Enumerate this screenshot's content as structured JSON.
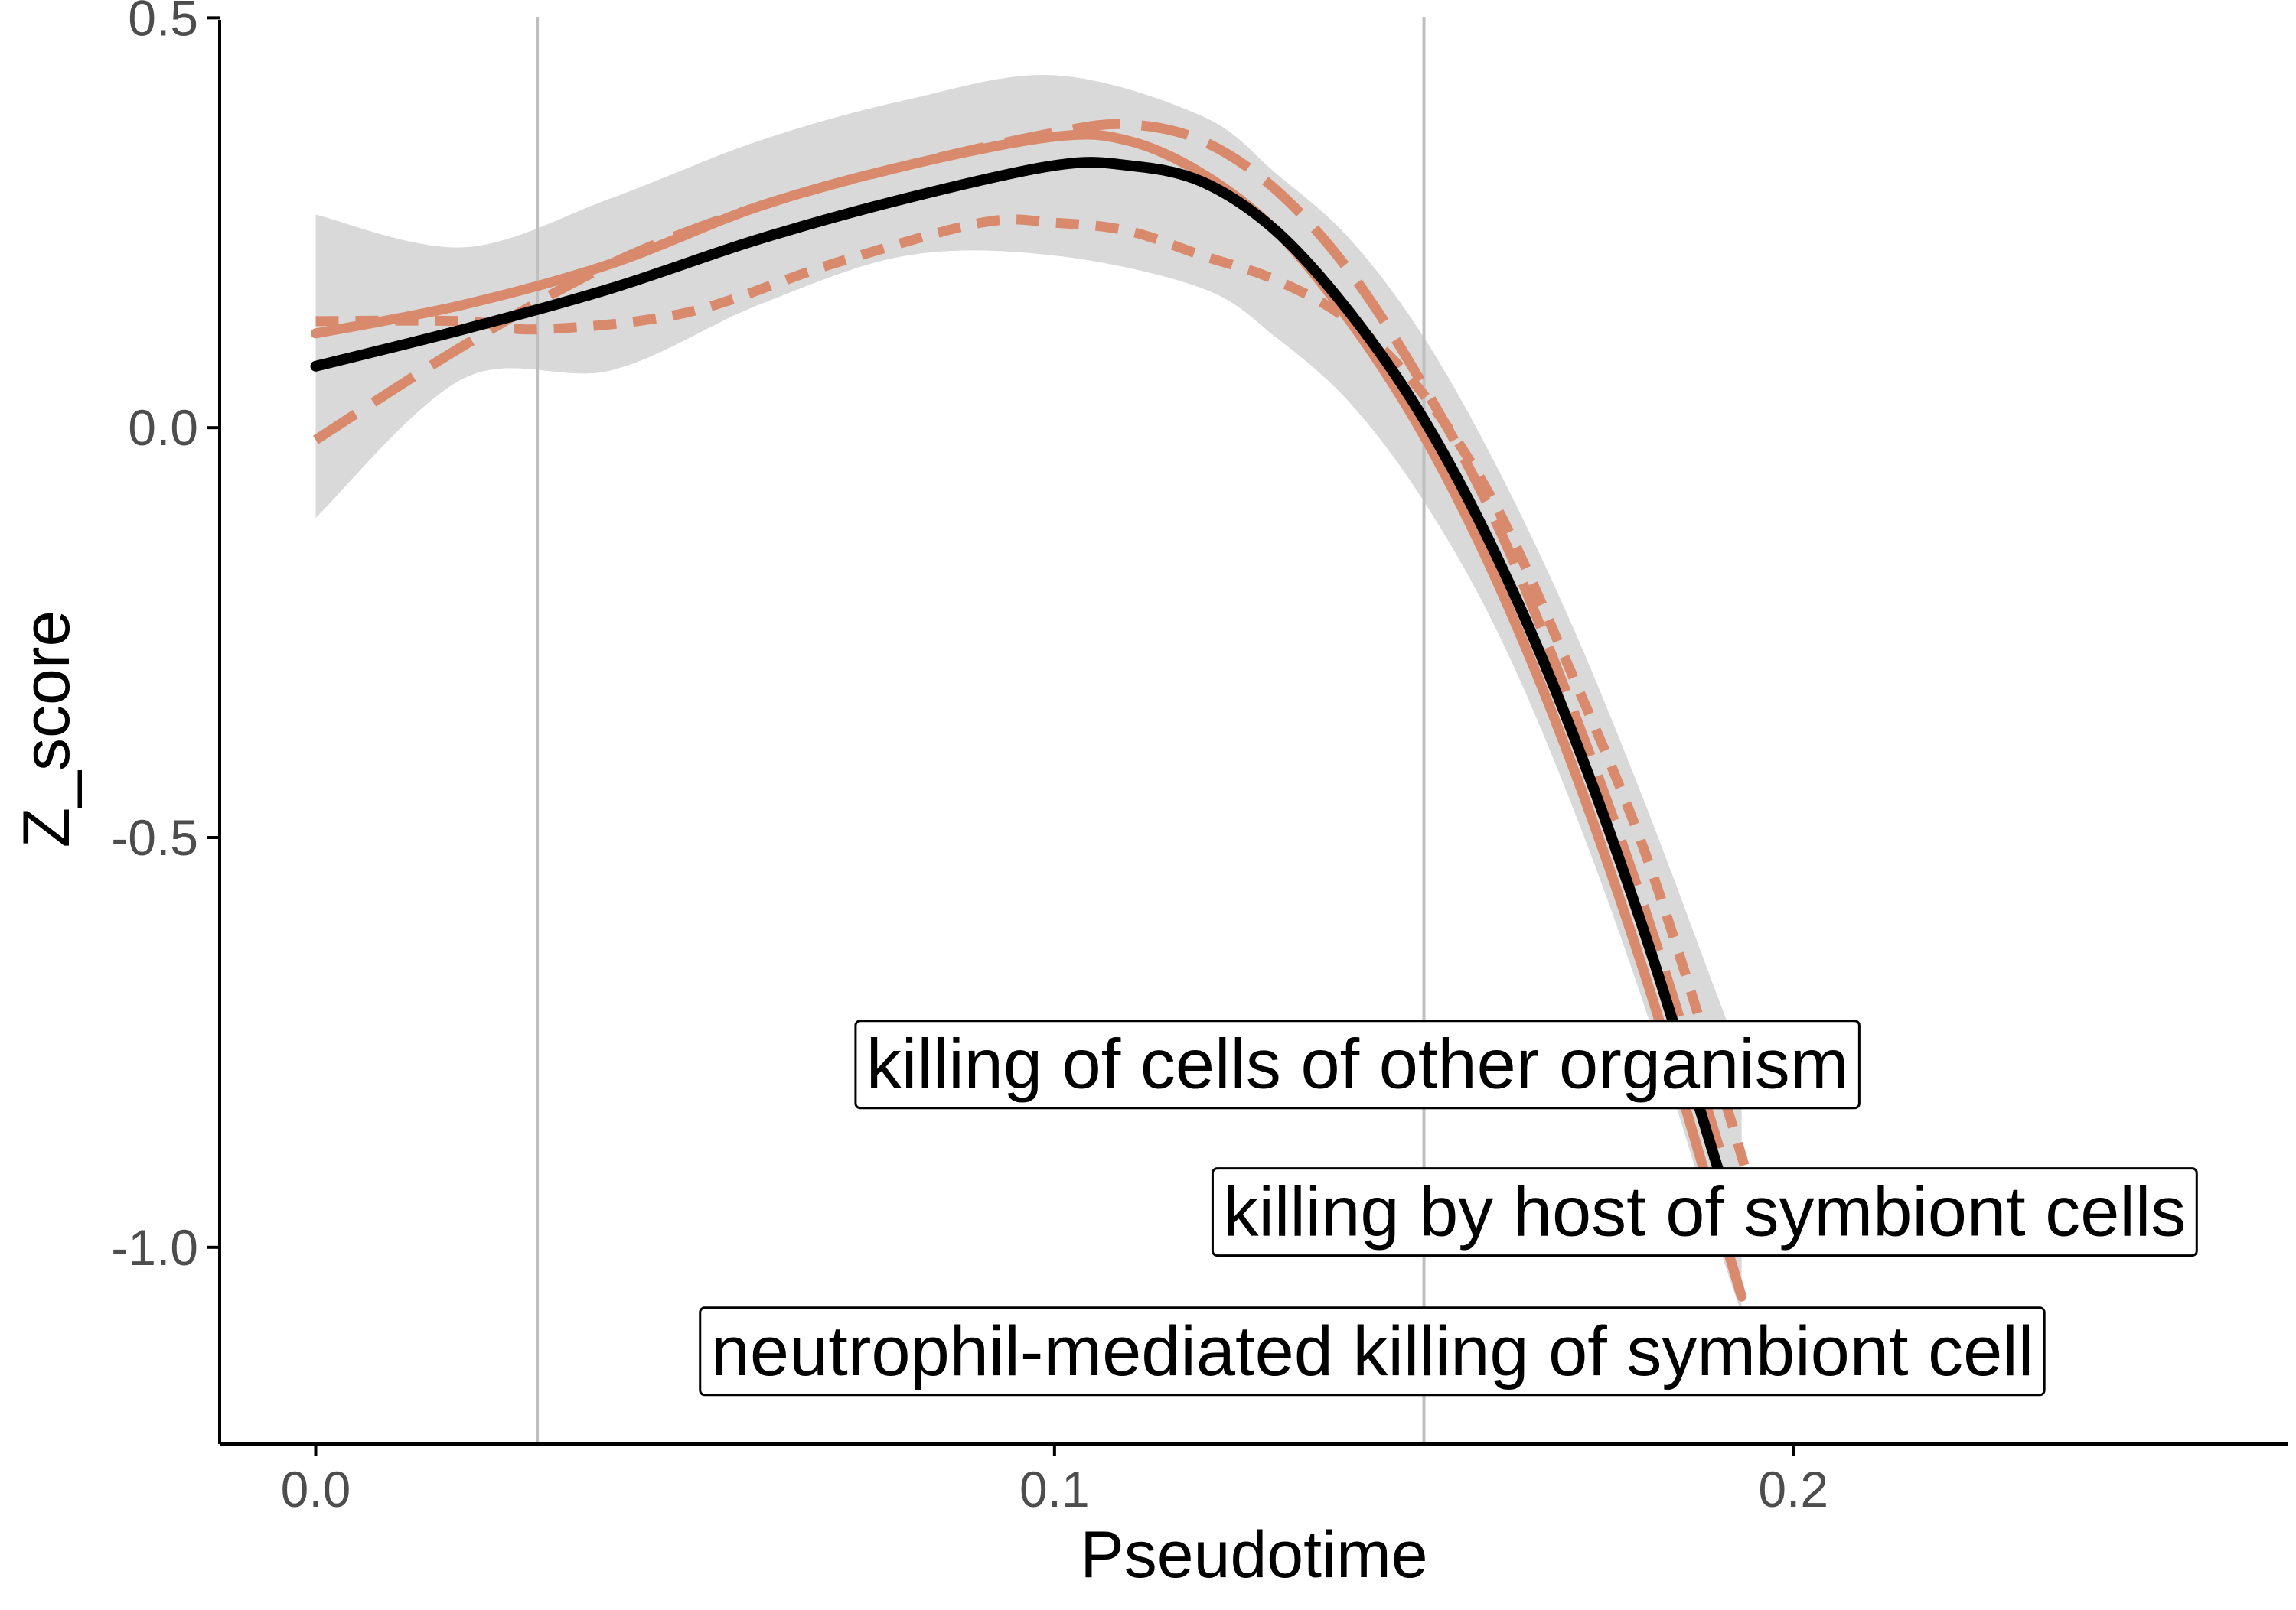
{
  "chart_data": {
    "type": "line",
    "title": "",
    "xlabel": "Pseudotime",
    "ylabel": "Z_score",
    "xlim": [
      -0.013,
      0.267
    ],
    "ylim": [
      -1.24,
      0.505
    ],
    "x_ticks": [
      0.0,
      0.1,
      0.2
    ],
    "x_tick_labels": [
      "0.0",
      "0.1",
      "0.2"
    ],
    "y_ticks": [
      0.5,
      0.0,
      -0.5,
      -1.0
    ],
    "y_tick_labels": [
      "0.5",
      "0.0",
      "-0.5",
      "-1.0"
    ],
    "grid": false,
    "vlines": [
      0.03,
      0.15
    ],
    "colors": {
      "overall": "#000000",
      "term": "#D98A6C",
      "ribbon": "#D9D9D9",
      "vline": "#BFBFBF",
      "axis": "#000000",
      "tick_label": "#4d4d4d"
    },
    "ribbon": {
      "x": [
        0.0,
        0.02,
        0.04,
        0.06,
        0.08,
        0.1,
        0.12,
        0.13,
        0.14,
        0.15,
        0.16,
        0.17,
        0.18,
        0.19,
        0.193
      ],
      "upper": [
        0.26,
        0.22,
        0.28,
        0.35,
        0.4,
        0.43,
        0.38,
        0.31,
        0.23,
        0.11,
        -0.05,
        -0.24,
        -0.46,
        -0.7,
        -0.77
      ],
      "lower": [
        -0.11,
        0.06,
        0.07,
        0.15,
        0.21,
        0.21,
        0.17,
        0.11,
        0.03,
        -0.09,
        -0.25,
        -0.46,
        -0.71,
        -1.0,
        -1.08
      ]
    },
    "series": [
      {
        "style": "solid",
        "color": "#000000",
        "x": [
          0.0,
          0.02,
          0.04,
          0.06,
          0.08,
          0.1,
          0.11,
          0.12,
          0.13,
          0.14,
          0.15,
          0.16,
          0.17,
          0.18,
          0.19,
          0.193
        ],
        "y": [
          0.075,
          0.12,
          0.17,
          0.23,
          0.28,
          0.32,
          0.32,
          0.3,
          0.24,
          0.14,
          0.01,
          -0.16,
          -0.37,
          -0.62,
          -0.91,
          -1.0
        ]
      },
      {
        "style": "solid",
        "color": "#D98A6C",
        "x": [
          0.0,
          0.02,
          0.04,
          0.06,
          0.08,
          0.1,
          0.11,
          0.12,
          0.13,
          0.14,
          0.15,
          0.16,
          0.17,
          0.18,
          0.19,
          0.193
        ],
        "y": [
          0.115,
          0.15,
          0.2,
          0.27,
          0.32,
          0.355,
          0.35,
          0.31,
          0.24,
          0.13,
          -0.01,
          -0.19,
          -0.41,
          -0.67,
          -0.97,
          -1.06
        ]
      },
      {
        "style": "dashed",
        "color": "#D98A6C",
        "x": [
          0.0,
          0.02,
          0.04,
          0.06,
          0.08,
          0.1,
          0.11,
          0.12,
          0.13,
          0.14,
          0.15,
          0.16,
          0.17,
          0.18,
          0.19,
          0.193
        ],
        "y": [
          -0.015,
          0.1,
          0.2,
          0.27,
          0.32,
          0.36,
          0.37,
          0.35,
          0.29,
          0.19,
          0.05,
          -0.12,
          -0.34,
          -0.59,
          -0.88,
          -0.98
        ]
      },
      {
        "style": "dotted",
        "color": "#D98A6C",
        "x": [
          0.0,
          0.02,
          0.03,
          0.05,
          0.07,
          0.09,
          0.1,
          0.11,
          0.12,
          0.13,
          0.14,
          0.15,
          0.16,
          0.17,
          0.18,
          0.19,
          0.195
        ],
        "y": [
          0.13,
          0.13,
          0.12,
          0.14,
          0.2,
          0.25,
          0.25,
          0.24,
          0.21,
          0.18,
          0.13,
          0.04,
          -0.1,
          -0.3,
          -0.52,
          -0.8,
          -0.95
        ]
      }
    ],
    "annotations": [
      {
        "text": "killing of cells of other organism",
        "x": 0.141,
        "y": -0.775
      },
      {
        "text": "killing by host of symbiont cells",
        "x": 0.188,
        "y": -0.955
      },
      {
        "text": "neutrophil-mediated killing of symbiont cell",
        "x": 0.143,
        "y": -1.125
      }
    ]
  }
}
